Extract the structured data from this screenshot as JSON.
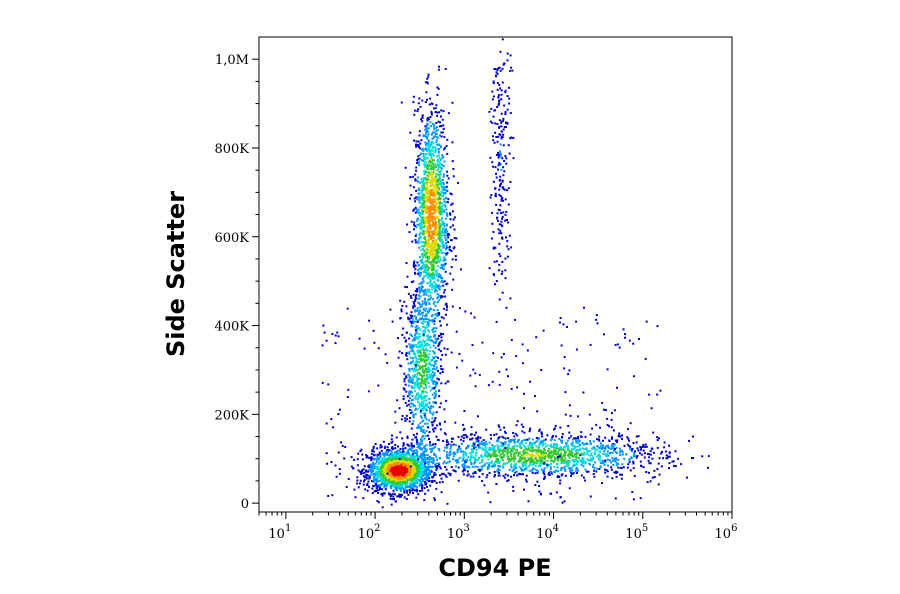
{
  "chart_data": {
    "type": "scatter",
    "title": "",
    "xlabel": "CD94 PE",
    "ylabel": "Side Scatter",
    "x_scale": "log",
    "xlim": [
      5,
      1000000
    ],
    "ylim": [
      -20000,
      1050000
    ],
    "x_ticks": [
      {
        "value": 10,
        "base": "10",
        "exp": "1"
      },
      {
        "value": 100,
        "base": "10",
        "exp": "2"
      },
      {
        "value": 1000,
        "base": "10",
        "exp": "3"
      },
      {
        "value": 10000,
        "base": "10",
        "exp": "4"
      },
      {
        "value": 100000,
        "base": "10",
        "exp": "5"
      },
      {
        "value": 1000000,
        "base": "10",
        "exp": "6"
      }
    ],
    "y_ticks": [
      {
        "value": 0,
        "label": "0"
      },
      {
        "value": 200000,
        "label": "200K"
      },
      {
        "value": 400000,
        "label": "400K"
      },
      {
        "value": 600000,
        "label": "600K"
      },
      {
        "value": 800000,
        "label": "800K"
      },
      {
        "value": 1000000,
        "label": "1,0M"
      }
    ],
    "grid": false,
    "legend": "none",
    "color_scale": [
      "#0000c8",
      "#0096ff",
      "#00dcdc",
      "#32c832",
      "#dcdc00",
      "#ff8c00",
      "#e60000"
    ],
    "populations": [
      {
        "x_center": 180,
        "x_spread_decades": 0.16,
        "y_center": 75000,
        "y_spread": 22000,
        "density": 1.0
      },
      {
        "x_center": 420,
        "x_spread_decades": 0.09,
        "y_center": 650000,
        "y_spread": 110000,
        "density": 0.8
      },
      {
        "x_center": 330,
        "x_spread_decades": 0.1,
        "y_center": 300000,
        "y_spread": 90000,
        "density": 0.45
      },
      {
        "x_center": 6000,
        "x_spread_decades": 0.65,
        "y_center": 110000,
        "y_spread": 22000,
        "density": 0.55
      },
      {
        "x_center": 2500,
        "x_spread_decades": 0.05,
        "y_center": 780000,
        "y_spread": 160000,
        "density": 0.12
      }
    ]
  }
}
